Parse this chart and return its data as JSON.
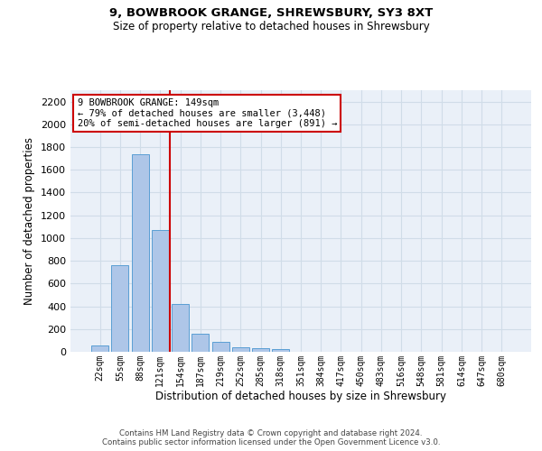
{
  "title1": "9, BOWBROOK GRANGE, SHREWSBURY, SY3 8XT",
  "title2": "Size of property relative to detached houses in Shrewsbury",
  "xlabel": "Distribution of detached houses by size in Shrewsbury",
  "ylabel": "Number of detached properties",
  "bar_labels": [
    "22sqm",
    "55sqm",
    "88sqm",
    "121sqm",
    "154sqm",
    "187sqm",
    "219sqm",
    "252sqm",
    "285sqm",
    "318sqm",
    "351sqm",
    "384sqm",
    "417sqm",
    "450sqm",
    "483sqm",
    "516sqm",
    "548sqm",
    "581sqm",
    "614sqm",
    "647sqm",
    "680sqm"
  ],
  "bar_values": [
    55,
    760,
    1740,
    1070,
    420,
    155,
    85,
    40,
    30,
    20,
    0,
    0,
    0,
    0,
    0,
    0,
    0,
    0,
    0,
    0,
    0
  ],
  "bar_color": "#aec6e8",
  "bar_edge_color": "#5a9fd4",
  "vline_x": 3.5,
  "vline_color": "#cc0000",
  "annotation_text": "9 BOWBROOK GRANGE: 149sqm\n← 79% of detached houses are smaller (3,448)\n20% of semi-detached houses are larger (891) →",
  "annotation_box_color": "#cc0000",
  "ylim": [
    0,
    2300
  ],
  "yticks": [
    0,
    200,
    400,
    600,
    800,
    1000,
    1200,
    1400,
    1600,
    1800,
    2000,
    2200
  ],
  "grid_color": "#d0dce8",
  "bg_color": "#eaf0f8",
  "footer1": "Contains HM Land Registry data © Crown copyright and database right 2024.",
  "footer2": "Contains public sector information licensed under the Open Government Licence v3.0."
}
